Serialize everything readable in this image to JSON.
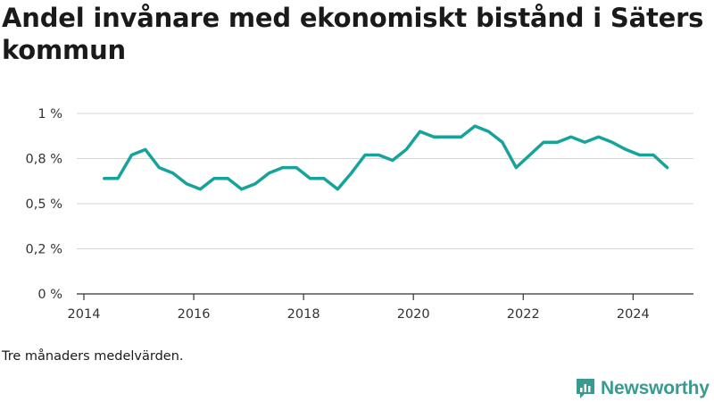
{
  "title": "Andel invånare med ekonomiskt bistånd i Säters kommun",
  "note": "Tre månaders medelvärden.",
  "brand": {
    "name": "Newsworthy",
    "icon": "newsworthy-logo-icon",
    "color": "#3a9a8f"
  },
  "chart_data": {
    "type": "line",
    "title": "Andel invånare med ekonomiskt bistånd i Säters kommun",
    "xlabel": "",
    "ylabel": "",
    "x_ticks": [
      "2014",
      "2016",
      "2018",
      "2020",
      "2022",
      "2024"
    ],
    "y_ticks": [
      "0 %",
      "0,2 %",
      "0,5 %",
      "0,8 %",
      "1 %"
    ],
    "y_tick_values": [
      0,
      0.25,
      0.5,
      0.75,
      1.0
    ],
    "xlim": [
      2014.0,
      2025.1
    ],
    "ylim": [
      0,
      1.0
    ],
    "grid": true,
    "line_color": "#16a39a",
    "series": [
      {
        "x": [
          2014.37,
          2014.62,
          2014.87,
          2015.12,
          2015.37,
          2015.62,
          2015.87,
          2016.12,
          2016.37,
          2016.62,
          2016.87,
          2017.12,
          2017.37,
          2017.62,
          2017.87,
          2018.12,
          2018.37,
          2018.62,
          2018.87,
          2019.12,
          2019.37,
          2019.62,
          2019.87,
          2020.12,
          2020.37,
          2020.62,
          2020.87,
          2021.12,
          2021.37,
          2021.62,
          2021.87,
          2022.12,
          2022.37,
          2022.62,
          2022.87,
          2023.12,
          2023.37,
          2023.62,
          2023.87,
          2024.12,
          2024.37,
          2024.62
        ],
        "values": [
          0.64,
          0.64,
          0.77,
          0.8,
          0.7,
          0.67,
          0.61,
          0.58,
          0.64,
          0.64,
          0.58,
          0.61,
          0.67,
          0.7,
          0.7,
          0.64,
          0.64,
          0.58,
          0.67,
          0.77,
          0.77,
          0.74,
          0.8,
          0.9,
          0.87,
          0.87,
          0.87,
          0.93,
          0.9,
          0.84,
          0.7,
          0.77,
          0.84,
          0.84,
          0.87,
          0.84,
          0.87,
          0.84,
          0.8,
          0.77,
          0.77,
          0.7
        ]
      }
    ]
  }
}
